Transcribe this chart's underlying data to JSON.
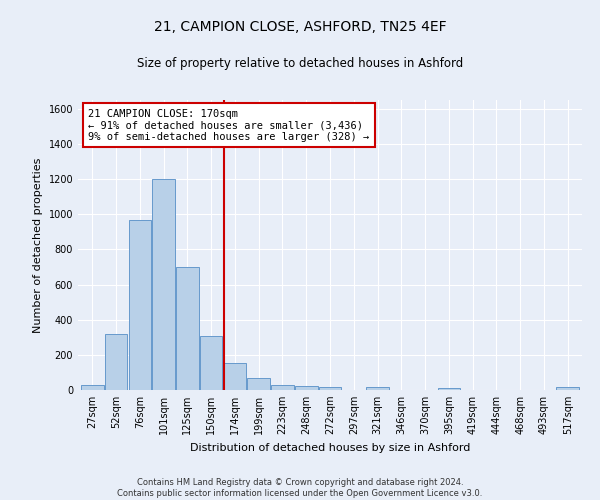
{
  "title": "21, CAMPION CLOSE, ASHFORD, TN25 4EF",
  "subtitle": "Size of property relative to detached houses in Ashford",
  "xlabel": "Distribution of detached houses by size in Ashford",
  "ylabel": "Number of detached properties",
  "footer_line1": "Contains HM Land Registry data © Crown copyright and database right 2024.",
  "footer_line2": "Contains public sector information licensed under the Open Government Licence v3.0.",
  "bar_labels": [
    "27sqm",
    "52sqm",
    "76sqm",
    "101sqm",
    "125sqm",
    "150sqm",
    "174sqm",
    "199sqm",
    "223sqm",
    "248sqm",
    "272sqm",
    "297sqm",
    "321sqm",
    "346sqm",
    "370sqm",
    "395sqm",
    "419sqm",
    "444sqm",
    "468sqm",
    "493sqm",
    "517sqm"
  ],
  "bar_values": [
    30,
    320,
    965,
    1200,
    700,
    305,
    155,
    70,
    30,
    20,
    15,
    0,
    15,
    0,
    0,
    10,
    0,
    0,
    0,
    0,
    15
  ],
  "bar_color": "#b8d0e8",
  "bar_edge_color": "#6699cc",
  "vline_index": 6,
  "annotation_text": "21 CAMPION CLOSE: 170sqm\n← 91% of detached houses are smaller (3,436)\n9% of semi-detached houses are larger (328) →",
  "annotation_box_color": "#ffffff",
  "annotation_box_edge": "#cc0000",
  "vline_color": "#cc0000",
  "ylim": [
    0,
    1650
  ],
  "yticks": [
    0,
    200,
    400,
    600,
    800,
    1000,
    1200,
    1400,
    1600
  ],
  "background_color": "#e8eef8",
  "grid_color": "#ffffff",
  "title_fontsize": 10,
  "subtitle_fontsize": 8.5,
  "axis_label_fontsize": 8,
  "tick_fontsize": 7,
  "annotation_fontsize": 7.5
}
